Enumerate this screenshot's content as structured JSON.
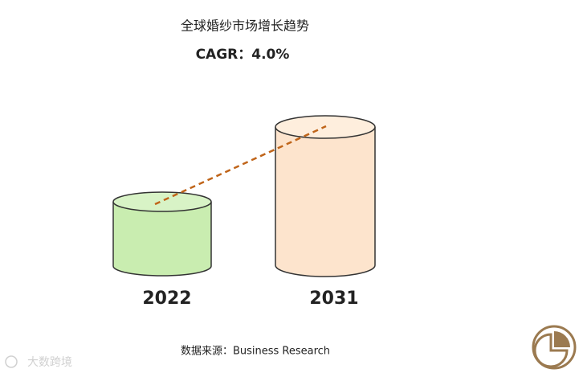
{
  "chart_data": {
    "type": "cylinder",
    "title": "全球婚纱市场增长趋势",
    "subtitle": "CAGR：4.0%",
    "categories": [
      "2022",
      "2031"
    ],
    "source": "数据来源：Business Research"
  },
  "watermark": "大数跨境"
}
